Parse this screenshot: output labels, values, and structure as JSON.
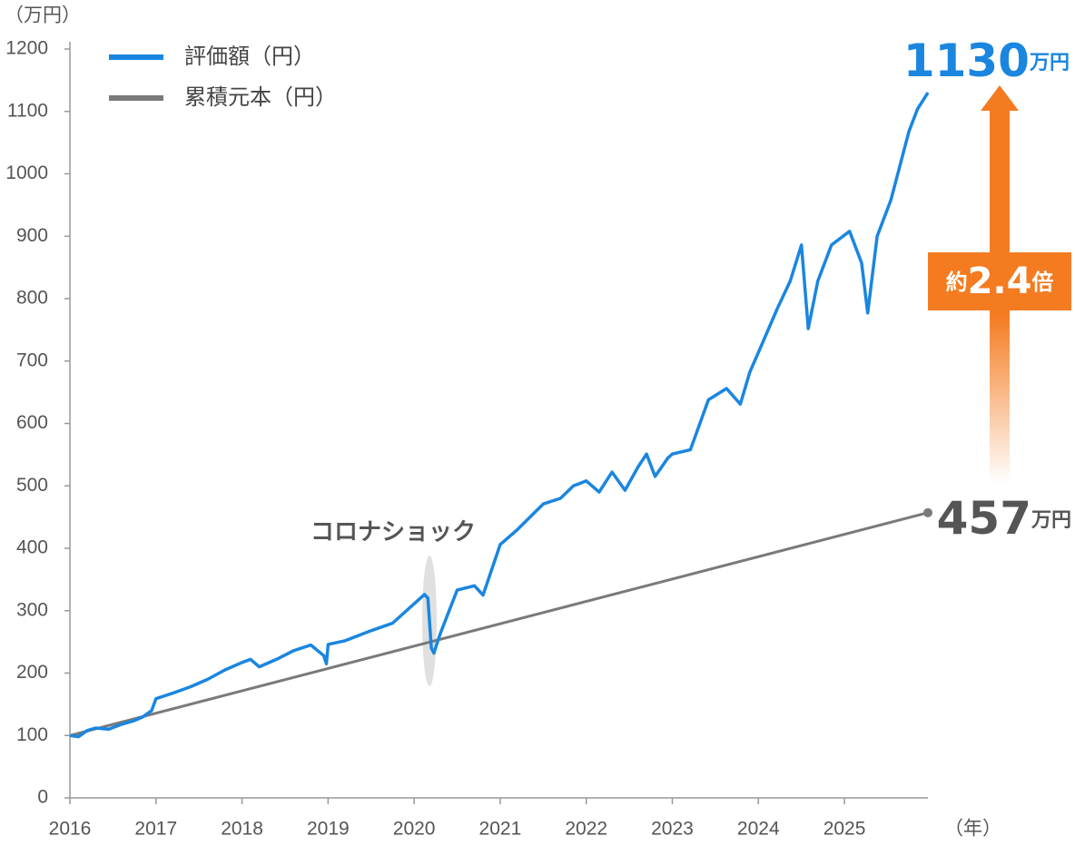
{
  "chart_data": {
    "type": "line",
    "y_unit_label": "（万円）",
    "x_unit_label": "（年）",
    "xlim": [
      2016,
      2026
    ],
    "xticks": [
      2016,
      2017,
      2018,
      2019,
      2020,
      2021,
      2022,
      2023,
      2024,
      2025
    ],
    "ylim": [
      0,
      1200
    ],
    "yticks": [
      0,
      100,
      200,
      300,
      400,
      500,
      600,
      700,
      800,
      900,
      1000,
      1100,
      1200
    ],
    "grid": false,
    "legend": "top-left",
    "series": [
      {
        "name": "評価額（円）",
        "color": "#1a86e0",
        "x": [
          2016.0,
          2016.1,
          2016.2,
          2016.3,
          2016.45,
          2016.6,
          2016.75,
          2016.85,
          2016.95,
          2017.0,
          2017.2,
          2017.4,
          2017.6,
          2017.8,
          2018.0,
          2018.1,
          2018.2,
          2018.4,
          2018.6,
          2018.8,
          2018.95,
          2018.98,
          2019.0,
          2019.2,
          2019.5,
          2019.75,
          2020.0,
          2020.12,
          2020.16,
          2020.2,
          2020.23,
          2020.3,
          2020.5,
          2020.7,
          2020.8,
          2020.85,
          2021.0,
          2021.2,
          2021.5,
          2021.7,
          2021.85,
          2022.0,
          2022.15,
          2022.3,
          2022.45,
          2022.6,
          2022.7,
          2022.8,
          2022.95,
          2023.0,
          2023.21,
          2023.42,
          2023.63,
          2023.79,
          2023.9,
          2024.06,
          2024.22,
          2024.37,
          2024.5,
          2024.58,
          2024.69,
          2024.85,
          2025.06,
          2025.2,
          2025.27,
          2025.38,
          2025.54,
          2025.75,
          2025.85,
          2025.97
        ],
        "values": [
          100,
          98,
          108,
          112,
          110,
          118,
          124,
          130,
          140,
          159,
          168,
          178,
          190,
          205,
          217,
          222,
          210,
          222,
          236,
          245,
          228,
          215,
          246,
          252,
          268,
          280,
          311,
          326,
          320,
          240,
          232,
          262,
          333,
          340,
          325,
          345,
          406,
          430,
          471,
          480,
          500,
          508,
          490,
          522,
          493,
          530,
          551,
          515,
          545,
          551,
          558,
          638,
          656,
          631,
          682,
          733,
          784,
          828,
          886,
          752,
          828,
          886,
          908,
          857,
          777,
          900,
          958,
          1068,
          1104,
          1130
        ]
      },
      {
        "name": "累積元本（円）",
        "color": "#7a7a7a",
        "x": [
          2016.0,
          2025.97
        ],
        "values": [
          100,
          457
        ]
      }
    ],
    "annotations": {
      "final_value": "1130",
      "final_value_unit": "万円",
      "principal": "457",
      "principal_unit": "万円",
      "ratio_prefix": "約",
      "ratio": "2.4",
      "ratio_suffix": "倍",
      "event": "コロナショック"
    }
  }
}
